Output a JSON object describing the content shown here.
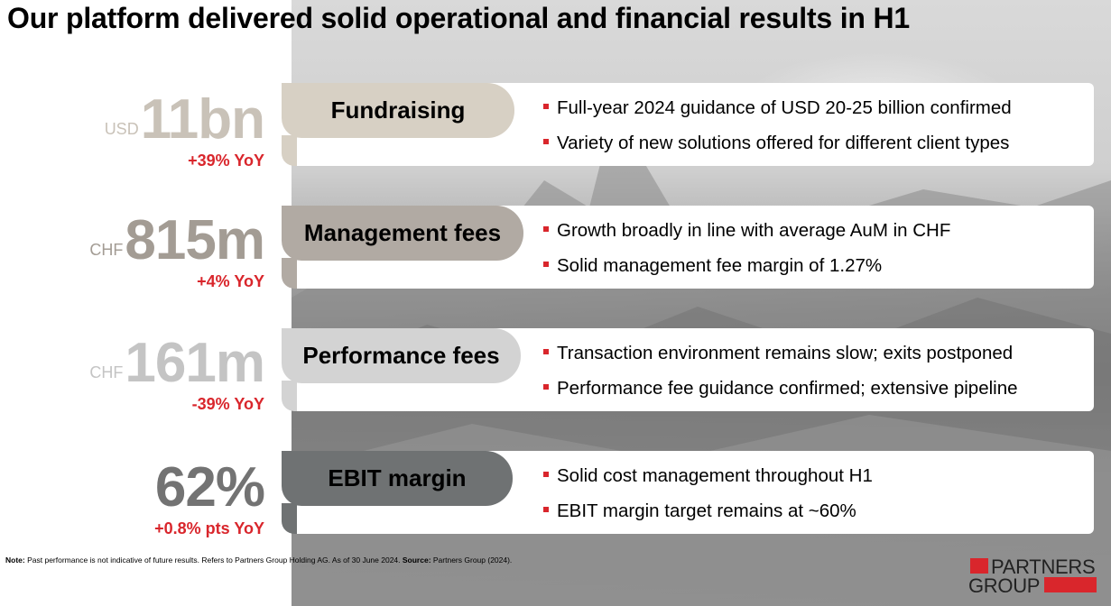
{
  "title": "Our platform delivered solid operational and financial results in H1",
  "accent_color": "#d9262c",
  "rows": [
    {
      "currency": "USD",
      "value": "11bn",
      "yoy": "+39% YoY",
      "label": "Fundraising",
      "bullets": [
        "Full-year 2024 guidance of USD 20-25 billion confirmed",
        "Variety of new solutions offered for different client types"
      ]
    },
    {
      "currency": "CHF",
      "value": "815m",
      "yoy": "+4% YoY",
      "label": "Management fees",
      "bullets": [
        "Growth broadly in line with average AuM in CHF",
        "Solid management fee margin of 1.27%"
      ]
    },
    {
      "currency": "CHF",
      "value": "161m",
      "yoy": "-39% YoY",
      "label": "Performance fees",
      "bullets": [
        "Transaction environment remains slow; exits postponed",
        "Performance fee guidance confirmed; extensive pipeline"
      ]
    },
    {
      "currency": "",
      "value": "62%",
      "yoy": "+0.8% pts YoY",
      "label": "EBIT margin",
      "bullets": [
        "Solid cost management throughout H1",
        "EBIT margin target remains at ~60%"
      ]
    }
  ],
  "note": {
    "note_label": "Note:",
    "note_text": " Past performance is not indicative of future results. Refers to Partners Group Holding AG. As of 30 June 2024. ",
    "source_label": "Source:",
    "source_text": " Partners Group (2024)."
  },
  "logo": {
    "line1": "PARTNERS",
    "line2": "GROUP"
  }
}
